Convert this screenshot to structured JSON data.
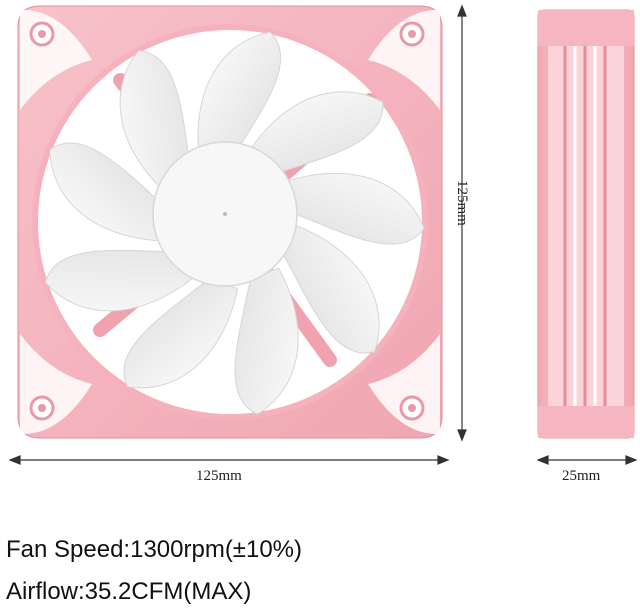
{
  "dimensions": {
    "front_width": "125mm",
    "height": "125mm",
    "depth": "25mm"
  },
  "specs": {
    "fan_speed": "Fan Speed:1300rpm(±10%)",
    "airflow": "Airflow:35.2CFM(MAX)"
  },
  "colors": {
    "frame_pink": "#f6b6bf",
    "frame_shadow": "#ee9ea9",
    "blade_white": "#f4f4f4",
    "blade_shadow": "#dedede",
    "arrow": "#333333"
  },
  "icons": {
    "front_view": "fan-front-icon",
    "side_view": "fan-side-icon"
  }
}
